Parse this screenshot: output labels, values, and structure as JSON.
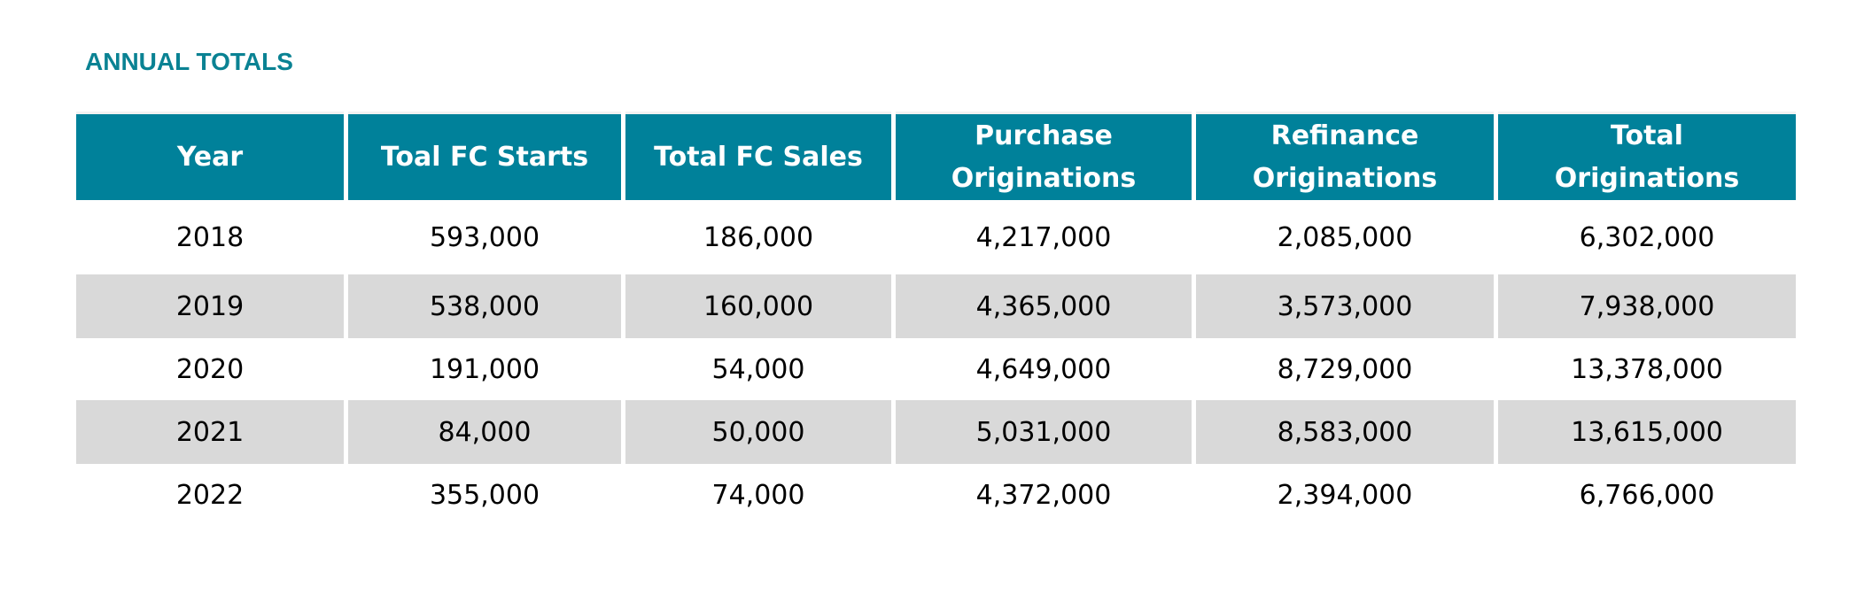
{
  "title": "ANNUAL TOTALS",
  "headers": [
    "Year",
    "Toal FC Starts",
    "Total FC Sales",
    "Purchase\nOriginations",
    "Refinance\nOriginations",
    "Total\nOriginations"
  ],
  "rows": [
    [
      "2018",
      "593,000",
      "186,000",
      "4,217,000",
      "2,085,000",
      "6,302,000"
    ],
    [
      "2019",
      "538,000",
      "160,000",
      "4,365,000",
      "3,573,000",
      "7,938,000"
    ],
    [
      "2020",
      "191,000",
      "54,000",
      "4,649,000",
      "8,729,000",
      "13,378,000"
    ],
    [
      "2021",
      "84,000",
      "50,000",
      "5,031,000",
      "8,583,000",
      "13,615,000"
    ],
    [
      "2022",
      "355,000",
      "74,000",
      "4,372,000",
      "2,394,000",
      "6,766,000"
    ]
  ],
  "colors": {
    "title": "#0a8293",
    "header_bg": "#00819a",
    "header_text": "#ffffff",
    "stripe": "#d9d9d9"
  }
}
